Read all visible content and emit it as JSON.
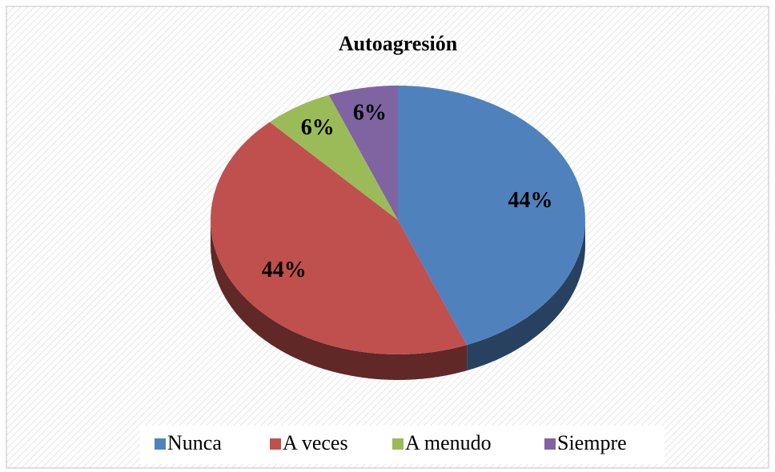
{
  "chart_data": {
    "type": "pie",
    "title": "Autoagresión",
    "categories": [
      "Nunca",
      "A veces",
      "A menudo",
      "Siempre"
    ],
    "values": [
      44,
      44,
      6,
      6
    ],
    "value_labels": [
      "44%",
      "44%",
      "6%",
      "6%"
    ],
    "colors": [
      "#4f81bd",
      "#c0504d",
      "#9bbb59",
      "#8064a2"
    ],
    "legend": "bottom"
  }
}
